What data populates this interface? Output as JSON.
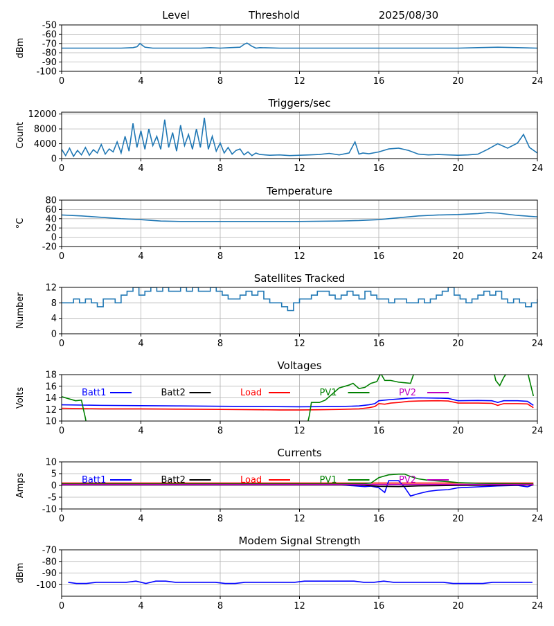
{
  "header": {
    "level_label": "Level",
    "threshold_label": "Threshold",
    "date": "2025/08/30"
  },
  "x_ticks": [
    0,
    4,
    8,
    12,
    16,
    20,
    24
  ],
  "colors": {
    "series_default": "#1f77b4",
    "batt1": "#0000ff",
    "batt2": "#000000",
    "load": "#ff0000",
    "pv1": "#008000",
    "pv2": "#bf00bf",
    "grid": "#b0b0b0"
  },
  "chart_data": [
    {
      "id": "level",
      "type": "line",
      "title": "",
      "ylabel": "dBm",
      "xlim": [
        0,
        24
      ],
      "ylim": [
        -100,
        -50
      ],
      "yticks": [
        -100,
        -90,
        -80,
        -70,
        -60,
        -50
      ],
      "grid": true,
      "series": [
        {
          "color_key": "series_default",
          "x": [
            0,
            1,
            2,
            3,
            3.6,
            3.8,
            3.95,
            4.2,
            4.6,
            5,
            6,
            7,
            7.5,
            8,
            8.5,
            9,
            9.2,
            9.35,
            9.6,
            9.8,
            10,
            11,
            12,
            14,
            16,
            18,
            20,
            21,
            22,
            23,
            24
          ],
          "y": [
            -75,
            -75,
            -75,
            -75,
            -74.5,
            -73.5,
            -70,
            -74,
            -75,
            -75,
            -75,
            -75,
            -74.5,
            -75,
            -74.5,
            -74,
            -71,
            -69.5,
            -73,
            -75,
            -74.5,
            -75,
            -75,
            -75,
            -75,
            -75,
            -75,
            -74.5,
            -74,
            -74.5,
            -75
          ]
        }
      ]
    },
    {
      "id": "triggers",
      "type": "line",
      "title": "Triggers/sec",
      "ylabel": "Count",
      "xlim": [
        0,
        24
      ],
      "ylim": [
        0,
        12500
      ],
      "yticks": [
        0,
        4000,
        8000,
        12000
      ],
      "grid": true,
      "series": [
        {
          "color_key": "series_default",
          "x": [
            0,
            0.2,
            0.4,
            0.6,
            0.8,
            1,
            1.2,
            1.4,
            1.6,
            1.8,
            2,
            2.2,
            2.4,
            2.6,
            2.8,
            3,
            3.2,
            3.4,
            3.6,
            3.8,
            4,
            4.2,
            4.4,
            4.6,
            4.8,
            5,
            5.2,
            5.4,
            5.6,
            5.8,
            6,
            6.2,
            6.4,
            6.6,
            6.8,
            7,
            7.2,
            7.4,
            7.6,
            7.8,
            8,
            8.2,
            8.4,
            8.6,
            8.8,
            9,
            9.2,
            9.4,
            9.6,
            9.8,
            10,
            10.5,
            11,
            11.5,
            12,
            12.5,
            13,
            13.5,
            14,
            14.5,
            14.8,
            15,
            15.2,
            15.5,
            16,
            16.5,
            17,
            17.5,
            18,
            18.5,
            19,
            19.5,
            20,
            20.5,
            21,
            21.5,
            22,
            22.5,
            23,
            23.3,
            23.6,
            24
          ],
          "y": [
            2500,
            800,
            2800,
            600,
            2200,
            1000,
            3000,
            900,
            2400,
            1500,
            3800,
            1200,
            2600,
            1800,
            4500,
            1500,
            6000,
            2000,
            9500,
            3000,
            7500,
            2500,
            8000,
            3500,
            6000,
            2500,
            10500,
            3000,
            7000,
            2000,
            9000,
            3500,
            6500,
            2500,
            8000,
            3000,
            11000,
            2500,
            6000,
            2000,
            4200,
            1500,
            3000,
            1200,
            2200,
            2600,
            1000,
            1800,
            800,
            1500,
            1100,
            900,
            1000,
            800,
            900,
            1000,
            1100,
            1400,
            1000,
            1500,
            4500,
            1200,
            1500,
            1300,
            1800,
            2600,
            2800,
            2200,
            1200,
            1000,
            1100,
            1000,
            900,
            1000,
            1200,
            2500,
            4000,
            2800,
            4200,
            6500,
            3000,
            1500
          ]
        }
      ]
    },
    {
      "id": "temperature",
      "type": "line",
      "title": "Temperature",
      "ylabel": "°C",
      "xlim": [
        0,
        24
      ],
      "ylim": [
        -20,
        80
      ],
      "yticks": [
        -20,
        0,
        20,
        40,
        60,
        80
      ],
      "grid": true,
      "series": [
        {
          "color_key": "series_default",
          "x": [
            0,
            1,
            2,
            3,
            4,
            5,
            6,
            8,
            10,
            12,
            14,
            15,
            16,
            17,
            18,
            19,
            20,
            21,
            21.5,
            22,
            23,
            24
          ],
          "y": [
            48,
            46,
            43,
            40,
            38,
            35,
            34,
            34,
            34,
            34,
            35,
            36,
            38,
            42,
            46,
            48,
            49,
            51,
            53,
            52,
            47,
            44
          ]
        }
      ]
    },
    {
      "id": "satellites",
      "type": "line",
      "title": "Satellites Tracked",
      "ylabel": "Number",
      "xlim": [
        0,
        24
      ],
      "ylim": [
        0,
        12
      ],
      "yticks": [
        0,
        4,
        8,
        12
      ],
      "grid": true,
      "step": true,
      "series": [
        {
          "color_key": "series_default",
          "x": [
            0,
            0.3,
            0.6,
            0.9,
            1.2,
            1.5,
            1.8,
            2.1,
            2.4,
            2.7,
            3,
            3.3,
            3.6,
            3.9,
            4.2,
            4.5,
            4.8,
            5.1,
            5.4,
            5.7,
            6,
            6.3,
            6.6,
            6.9,
            7.2,
            7.5,
            7.8,
            8.1,
            8.4,
            8.7,
            9,
            9.3,
            9.6,
            9.9,
            10.2,
            10.5,
            10.8,
            11.1,
            11.4,
            11.7,
            12,
            12.3,
            12.6,
            12.9,
            13.2,
            13.5,
            13.8,
            14.1,
            14.4,
            14.7,
            15,
            15.3,
            15.6,
            15.9,
            16.2,
            16.5,
            16.8,
            17.1,
            17.4,
            17.7,
            18,
            18.3,
            18.6,
            18.9,
            19.2,
            19.5,
            19.8,
            20.1,
            20.4,
            20.7,
            21,
            21.3,
            21.6,
            21.9,
            22.2,
            22.5,
            22.8,
            23.1,
            23.4,
            23.7,
            24
          ],
          "y": [
            8,
            8,
            9,
            8,
            9,
            8,
            7,
            9,
            9,
            8,
            10,
            11,
            12,
            10,
            11,
            12,
            11,
            12,
            11,
            11,
            12,
            11,
            12,
            11,
            11,
            12,
            11,
            10,
            9,
            9,
            10,
            11,
            10,
            11,
            9,
            8,
            8,
            7,
            6,
            8,
            9,
            9,
            10,
            11,
            11,
            10,
            9,
            10,
            11,
            10,
            9,
            11,
            10,
            9,
            9,
            8,
            9,
            9,
            8,
            8,
            9,
            8,
            9,
            10,
            11,
            12,
            10,
            9,
            8,
            9,
            10,
            11,
            10,
            11,
            9,
            8,
            9,
            8,
            7,
            8,
            9
          ]
        }
      ]
    },
    {
      "id": "voltages",
      "type": "line",
      "title": "Voltages",
      "ylabel": "Volts",
      "xlim": [
        0,
        24
      ],
      "ylim": [
        10,
        18
      ],
      "yticks": [
        10,
        12,
        14,
        16,
        18
      ],
      "grid": true,
      "legend": "inline",
      "series": [
        {
          "name": "Batt1",
          "color_key": "batt1",
          "x": [
            0,
            2,
            4,
            6,
            8,
            10,
            12,
            14,
            15,
            15.5,
            15.8,
            16,
            16.3,
            16.6,
            17,
            17.5,
            18,
            19,
            19.5,
            20,
            21,
            21.7,
            22,
            22.3,
            23,
            23.5,
            23.8
          ],
          "y": [
            12.8,
            12.7,
            12.65,
            12.6,
            12.55,
            12.5,
            12.45,
            12.5,
            12.6,
            12.8,
            13.0,
            13.5,
            13.6,
            13.7,
            13.8,
            13.95,
            14.0,
            13.95,
            13.9,
            13.5,
            13.55,
            13.5,
            13.2,
            13.5,
            13.5,
            13.4,
            12.7
          ]
        },
        {
          "name": "Load",
          "color_key": "load",
          "x": [
            0,
            2,
            4,
            6,
            8,
            10,
            11,
            12,
            13,
            14,
            15,
            15.5,
            15.8,
            16,
            16.3,
            16.6,
            17,
            17.5,
            18,
            19,
            19.5,
            20,
            21,
            21.7,
            22,
            22.3,
            23,
            23.5,
            23.8
          ],
          "y": [
            12.2,
            12.1,
            12.1,
            12.05,
            12.0,
            11.95,
            11.9,
            11.9,
            11.95,
            12.0,
            12.1,
            12.3,
            12.5,
            13.0,
            12.9,
            13.1,
            13.2,
            13.4,
            13.45,
            13.5,
            13.45,
            13.1,
            13.1,
            13.05,
            12.7,
            13.0,
            13.0,
            12.95,
            12.3
          ]
        },
        {
          "name": "PV1",
          "color_key": "pv1",
          "x": [
            0,
            0.4,
            0.7,
            1.0,
            1.1,
            1.2,
            1.25,
            12.4,
            12.5,
            12.6,
            13.0,
            13.3,
            13.6,
            14.0,
            14.5,
            14.7,
            15.0,
            15.3,
            15.6,
            15.9,
            16.1,
            16.3,
            16.6,
            17.0,
            17.3,
            17.6,
            17.8,
            21.8,
            21.9,
            22.1,
            22.3,
            22.5,
            23.0,
            23.5,
            23.8
          ],
          "y": [
            14.2,
            13.8,
            13.5,
            13.6,
            12.0,
            10.5,
            9.5,
            9.5,
            11.0,
            13.2,
            13.2,
            13.6,
            14.5,
            15.7,
            16.2,
            16.5,
            15.6,
            15.8,
            16.5,
            16.8,
            18.2,
            17.0,
            17.0,
            16.7,
            16.6,
            16.5,
            18.5,
            18.5,
            17.0,
            16.1,
            17.5,
            18.5,
            18.5,
            18.5,
            14.3
          ]
        }
      ],
      "legend_entries": [
        {
          "name": "Batt1",
          "color_key": "batt1"
        },
        {
          "name": "Batt2",
          "color_key": "batt2"
        },
        {
          "name": "Load",
          "color_key": "load"
        },
        {
          "name": "PV1",
          "color_key": "pv1"
        },
        {
          "name": "PV2",
          "color_key": "pv2"
        }
      ]
    },
    {
      "id": "currents",
      "type": "line",
      "title": "Currents",
      "ylabel": "Amps",
      "xlim": [
        0,
        24
      ],
      "ylim": [
        -10,
        10
      ],
      "yticks": [
        -10,
        -5,
        0,
        5,
        10
      ],
      "grid": true,
      "legend": "inline",
      "series": [
        {
          "name": "Load",
          "color_key": "load",
          "x": [
            0,
            4,
            8,
            12,
            16,
            20,
            23.8
          ],
          "y": [
            1.0,
            1.0,
            1.0,
            1.0,
            1.0,
            1.0,
            1.0
          ]
        },
        {
          "name": "PV1",
          "color_key": "pv1",
          "x": [
            0,
            4,
            8,
            12,
            14,
            15.3,
            15.6,
            16.0,
            16.5,
            17.0,
            17.3,
            17.6,
            18.0,
            18.5,
            19.5,
            20.0,
            21.0,
            22.0,
            23.0,
            23.8
          ],
          "y": [
            0.7,
            0.7,
            0.7,
            0.7,
            0.7,
            0.8,
            1.0,
            3.3,
            4.5,
            4.8,
            4.8,
            3.8,
            2.8,
            2.2,
            1.6,
            1.2,
            0.9,
            0.8,
            0.7,
            0.6
          ]
        },
        {
          "name": "Batt1",
          "color_key": "batt1",
          "x": [
            0,
            4,
            8,
            12,
            14,
            15.3,
            15.6,
            16.0,
            16.3,
            16.5,
            16.8,
            17.0,
            17.3,
            17.6,
            18.0,
            18.5,
            19.0,
            19.5,
            20.0,
            21.0,
            22.0,
            23.0,
            23.5,
            23.8
          ],
          "y": [
            0.3,
            0.3,
            0.3,
            0.3,
            0.3,
            -0.5,
            -0.3,
            -1.0,
            -3.0,
            2.0,
            2.0,
            2.0,
            -0.8,
            -4.5,
            -3.5,
            -2.5,
            -2.0,
            -1.8,
            -1.0,
            -0.6,
            -0.2,
            0.0,
            -0.6,
            0.3
          ]
        },
        {
          "name": "Batt2",
          "color_key": "batt2",
          "x": [
            0,
            4,
            8,
            12,
            15,
            16,
            17,
            18,
            20,
            22,
            23.8
          ],
          "y": [
            0.2,
            0.2,
            0.2,
            0.2,
            0.2,
            -0.4,
            -0.5,
            -0.2,
            0.0,
            0.1,
            0.2
          ]
        },
        {
          "name": "PV2",
          "color_key": "pv2",
          "x": [
            0,
            4,
            8,
            12,
            16,
            20,
            23.8
          ],
          "y": [
            0.4,
            0.4,
            0.4,
            0.4,
            0.4,
            0.4,
            0.4
          ]
        }
      ],
      "legend_entries": [
        {
          "name": "Batt1",
          "color_key": "batt1"
        },
        {
          "name": "Batt2",
          "color_key": "batt2"
        },
        {
          "name": "Load",
          "color_key": "load"
        },
        {
          "name": "PV1",
          "color_key": "pv1"
        },
        {
          "name": "PV2",
          "color_key": "pv2"
        }
      ]
    },
    {
      "id": "modem",
      "type": "line",
      "title": "Modem Signal Strength",
      "ylabel": "dBm",
      "xlim": [
        0,
        24
      ],
      "ylim": [
        -110,
        -70
      ],
      "yticks": [
        -100,
        -90,
        -80,
        -70
      ],
      "grid": true,
      "series": [
        {
          "color_key": "batt1",
          "x": [
            0.33,
            0.75,
            1.25,
            1.75,
            2.25,
            3.25,
            3.75,
            4.25,
            4.75,
            5.25,
            5.75,
            6.75,
            7.25,
            7.75,
            8.25,
            8.75,
            9.25,
            9.75,
            10.25,
            11.25,
            11.75,
            12.25,
            13.25,
            14.25,
            14.75,
            15.25,
            15.75,
            16.25,
            16.75,
            17.75,
            18.25,
            19.25,
            19.75,
            20.25,
            20.75,
            21.25,
            21.75,
            22.25,
            23.25,
            23.75
          ],
          "y": [
            -98,
            -99,
            -99,
            -98,
            -98,
            -98,
            -97,
            -99,
            -97,
            -97,
            -98,
            -98,
            -98,
            -98,
            -99,
            -99,
            -98,
            -98,
            -98,
            -98,
            -98,
            -97,
            -97,
            -97,
            -97,
            -98,
            -98,
            -97,
            -98,
            -98,
            -98,
            -98,
            -99,
            -99,
            -99,
            -99,
            -98,
            -98,
            -98,
            -98
          ]
        }
      ]
    }
  ]
}
